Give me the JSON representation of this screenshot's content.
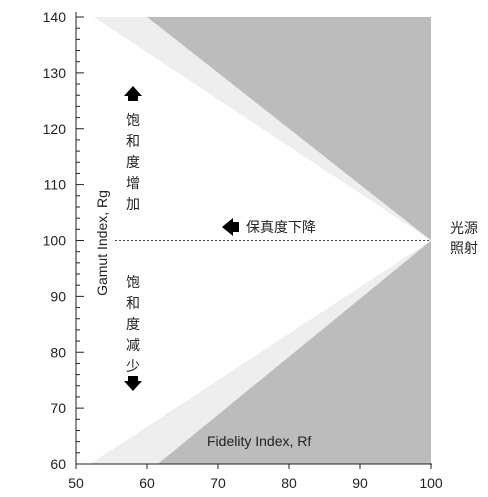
{
  "chart_data": {
    "type": "area",
    "x_axis": {
      "label": "Fidelity Index, Rf",
      "range": [
        50,
        100
      ],
      "ticks": [
        50,
        60,
        70,
        80,
        90,
        100
      ]
    },
    "y_axis": {
      "label": "Gamut Index, Rg",
      "range": [
        60,
        140
      ],
      "ticks": [
        60,
        70,
        80,
        90,
        100,
        110,
        120,
        130,
        140
      ]
    },
    "regions": [
      {
        "kind": "out-of-gamut",
        "color": "#bdbbbc",
        "polygon": [
          [
            60,
            140
          ],
          [
            100,
            140
          ],
          [
            100,
            60
          ],
          [
            61.5,
            60
          ],
          [
            100,
            100
          ]
        ]
      },
      {
        "kind": "transition",
        "color": "#eeeeee",
        "polygon": [
          [
            52.5,
            140
          ],
          [
            60,
            140
          ],
          [
            100,
            100
          ],
          [
            61.5,
            60
          ],
          [
            52,
            60
          ],
          [
            100,
            100
          ]
        ]
      }
    ],
    "reference_line": {
      "y": 100,
      "from_x": 55.5,
      "to_x": 100,
      "style": "dotted"
    },
    "annotations": {
      "saturation_increase": "饱和度增加",
      "saturation_decrease": "饱和度减少",
      "fidelity_decrease": "保真度下降",
      "reference_source_line1": "光源",
      "reference_source_line2": "照射"
    }
  }
}
